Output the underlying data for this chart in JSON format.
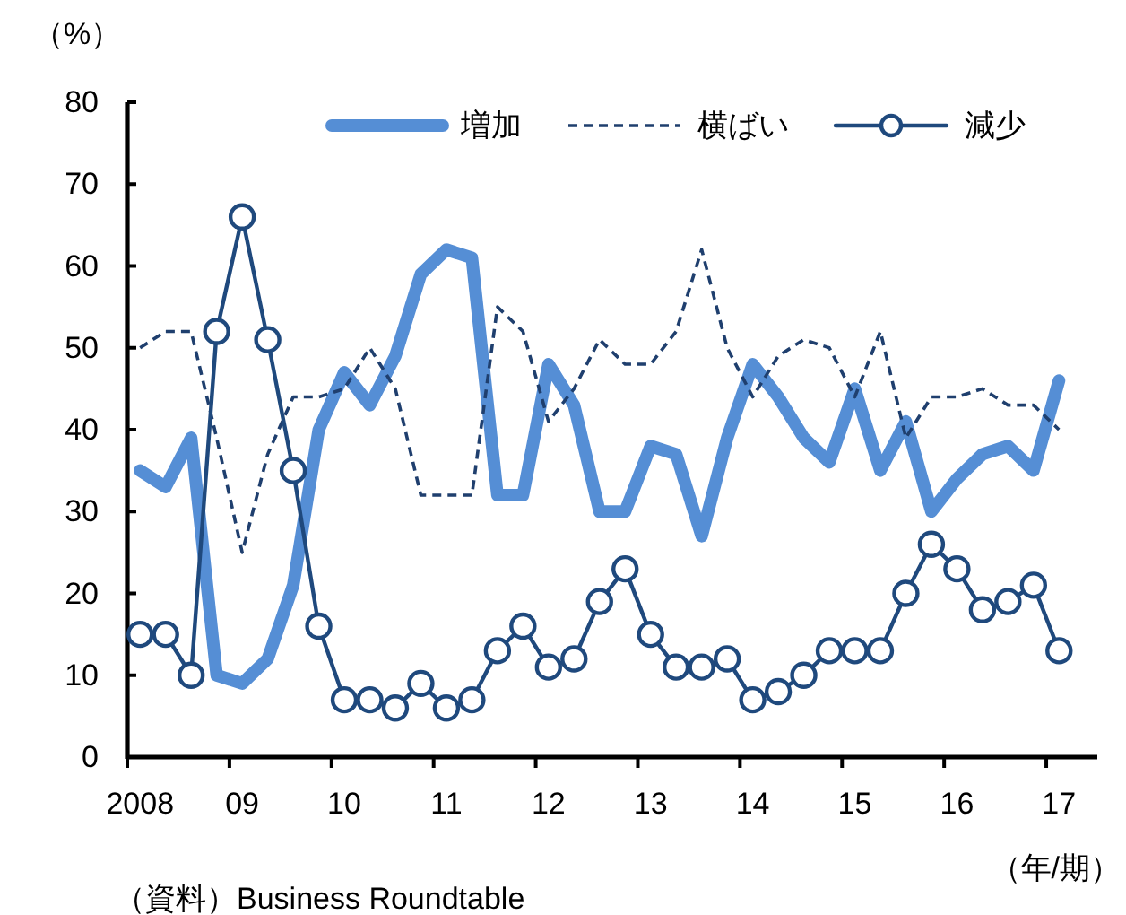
{
  "chart_data": {
    "type": "line",
    "categories": [
      "2008",
      null,
      null,
      null,
      "09",
      null,
      null,
      null,
      "10",
      null,
      null,
      null,
      "11",
      null,
      null,
      null,
      "12",
      null,
      null,
      null,
      "13",
      null,
      null,
      null,
      "14",
      null,
      null,
      null,
      "15",
      null,
      null,
      null,
      "16",
      null,
      null,
      null,
      "17",
      null
    ],
    "series": [
      {
        "name": "増加",
        "color": "#558ed5",
        "line_style": "solid",
        "marker": "none",
        "values": [
          35,
          33,
          39,
          10,
          9,
          12,
          21,
          40,
          47,
          43,
          49,
          59,
          62,
          61,
          32,
          32,
          48,
          43,
          30,
          30,
          38,
          37,
          27,
          39,
          48,
          44,
          39,
          36,
          45,
          35,
          41,
          30,
          34,
          37,
          38,
          35,
          46,
          null
        ]
      },
      {
        "name": "横ばい",
        "color": "#1f3f6e",
        "line_style": "dashed",
        "marker": "none",
        "values": [
          50,
          52,
          52,
          39,
          25,
          37,
          44,
          44,
          45,
          50,
          45,
          32,
          32,
          32,
          55,
          52,
          41,
          45,
          51,
          48,
          48,
          52,
          62,
          50,
          44,
          49,
          51,
          50,
          44,
          52,
          39,
          44,
          44,
          45,
          43,
          43,
          40,
          null
        ]
      },
      {
        "name": "減少",
        "color": "#1f497d",
        "line_style": "solid",
        "marker": "circle",
        "values": [
          15,
          15,
          10,
          52,
          66,
          51,
          35,
          16,
          7,
          7,
          6,
          9,
          6,
          7,
          13,
          16,
          11,
          12,
          19,
          23,
          15,
          11,
          11,
          12,
          7,
          8,
          10,
          13,
          13,
          13,
          20,
          26,
          23,
          18,
          19,
          21,
          13,
          null
        ]
      }
    ],
    "ylim": [
      0,
      80
    ],
    "yticks": [
      0,
      10,
      20,
      30,
      40,
      50,
      60,
      70,
      80
    ],
    "ylabel": "（%）",
    "xlabel": "（年/期）",
    "annotations": [
      "（資料）Business Roundtable"
    ],
    "legend": "top"
  }
}
